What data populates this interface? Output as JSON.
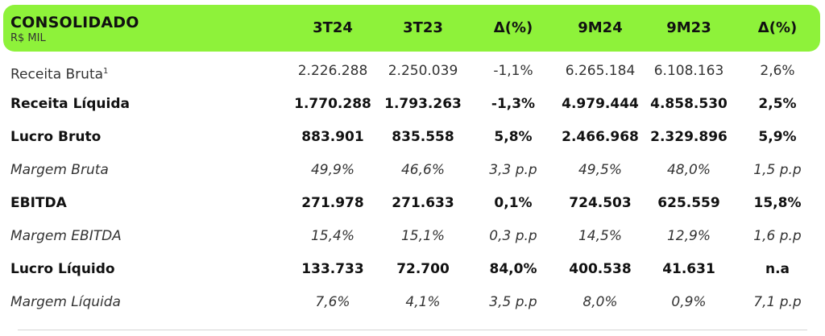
{
  "table": {
    "title": "CONSOLIDADO",
    "subtitle": "R$ MIL",
    "columns": [
      "3T24",
      "3T23",
      "Δ(%)",
      "9M24",
      "9M23",
      "Δ(%)"
    ],
    "rows": [
      {
        "label": "Receita Bruta",
        "sup": "1",
        "style": "normal",
        "values": [
          "2.226.288",
          "2.250.039",
          "-1,1%",
          "6.265.184",
          "6.108.163",
          "2,6%"
        ]
      },
      {
        "label": "Receita Líquida",
        "sup": "",
        "style": "bold",
        "values": [
          "1.770.288",
          "1.793.263",
          "-1,3%",
          "4.979.444",
          "4.858.530",
          "2,5%"
        ]
      },
      {
        "label": "Lucro Bruto",
        "sup": "",
        "style": "bold",
        "values": [
          "883.901",
          "835.558",
          "5,8%",
          "2.466.968",
          "2.329.896",
          "5,9%"
        ]
      },
      {
        "label": "Margem Bruta",
        "sup": "",
        "style": "italic",
        "values": [
          "49,9%",
          "46,6%",
          "3,3 p.p",
          "49,5%",
          "48,0%",
          "1,5 p.p"
        ]
      },
      {
        "label": "EBITDA",
        "sup": "",
        "style": "bold",
        "values": [
          "271.978",
          "271.633",
          "0,1%",
          "724.503",
          "625.559",
          "15,8%"
        ]
      },
      {
        "label": "Margem EBITDA",
        "sup": "",
        "style": "italic",
        "values": [
          "15,4%",
          "15,1%",
          "0,3 p.p",
          "14,5%",
          "12,9%",
          "1,6 p.p"
        ]
      },
      {
        "label": "Lucro Líquido",
        "sup": "",
        "style": "bold",
        "values": [
          "133.733",
          "72.700",
          "84,0%",
          "400.538",
          "41.631",
          "n.a"
        ]
      },
      {
        "label": "Margem Líquida",
        "sup": "",
        "style": "italic",
        "values": [
          "7,6%",
          "4,1%",
          "3,5 p.p",
          "8,0%",
          "0,9%",
          "7,1 p.p"
        ]
      }
    ]
  },
  "colors": {
    "header_bg": "#8ef23a"
  }
}
